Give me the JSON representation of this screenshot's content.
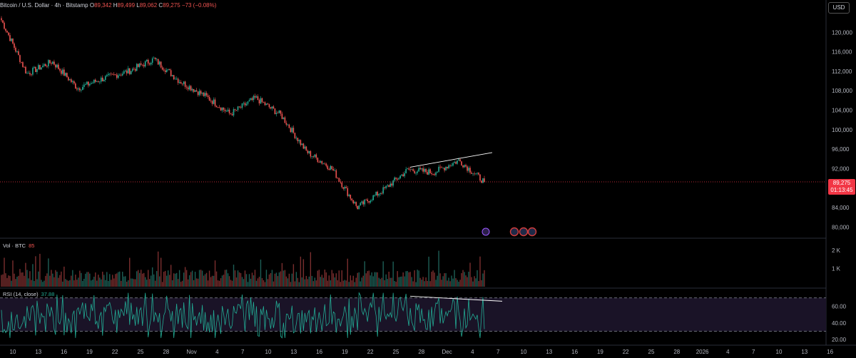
{
  "header": {
    "symbol": "Bitcoin / U.S. Dollar · 4h · Bitstamp",
    "o_label": "O",
    "o": "89,342",
    "h_label": "H",
    "h": "89,499",
    "l_label": "L",
    "l": "89,062",
    "c_label": "C",
    "c": "89,275",
    "change": "−73 (−0.08%)"
  },
  "currency_button": "USD",
  "last_price": "89,275",
  "countdown": "01:13:45",
  "volume_legend": {
    "title": "Vol · BTC",
    "value": "85"
  },
  "rsi_legend": {
    "title": "RSI (14, close)",
    "value": "37.88"
  },
  "price_axis": [
    "120,000",
    "116,000",
    "112,000",
    "108,000",
    "104,000",
    "100,000",
    "96,000",
    "92,000",
    "84,000",
    "80,000"
  ],
  "volume_axis": [
    "2 K",
    "1 K"
  ],
  "rsi_axis": [
    "60.00",
    "40.00",
    "20.00"
  ],
  "time_axis": [
    "10",
    "13",
    "16",
    "19",
    "22",
    "25",
    "28",
    "Nov",
    "4",
    "7",
    "10",
    "13",
    "16",
    "19",
    "22",
    "25",
    "28",
    "Dec",
    "4",
    "7",
    "10",
    "13",
    "16",
    "19",
    "22",
    "25",
    "28",
    "2026",
    "4",
    "7",
    "10",
    "13",
    "16"
  ],
  "colors": {
    "up": "#22ab94",
    "down": "#ef5350",
    "rsi_line": "#22ab94",
    "last_price": "#f23645"
  },
  "chart_data": {
    "type": "line",
    "x": [
      "Oct 10",
      "Oct 13",
      "Oct 16",
      "Oct 19",
      "Oct 22",
      "Oct 25",
      "Oct 28",
      "Nov 1",
      "Nov 4",
      "Nov 7",
      "Nov 10",
      "Nov 13",
      "Nov 16",
      "Nov 19",
      "Nov 22",
      "Nov 25",
      "Nov 28",
      "Dec 1",
      "Dec 4",
      "Dec 6"
    ],
    "series": [
      {
        "values": [
          122500,
          111500,
          114000,
          108500,
          110500,
          112000,
          114500,
          110000,
          107000,
          103200,
          106500,
          103000,
          95500,
          92000,
          84000,
          87500,
          91800,
          91200,
          93700,
          89275
        ]
      }
    ],
    "ylim": [
      78000,
      124000
    ],
    "volume_ylim": [
      0,
      2600
    ],
    "rsi_ylim": [
      15,
      80
    ],
    "rsi_bands": [
      70,
      30
    ]
  }
}
